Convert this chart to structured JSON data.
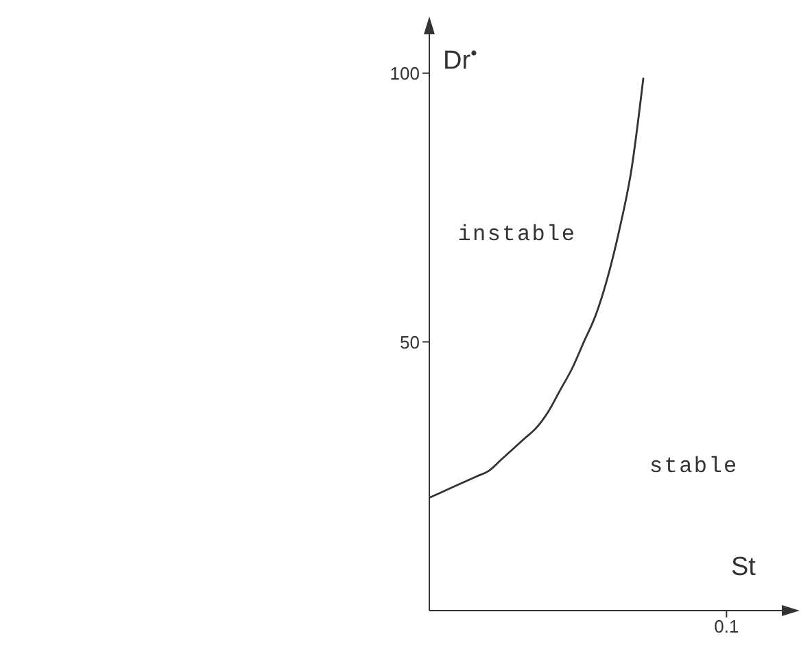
{
  "chart_data": {
    "type": "line",
    "xlabel": "St",
    "ylabel": "Dr$^{•}$",
    "categories": [
      null,
      null,
      null,
      null,
      null,
      null,
      null,
      null,
      null,
      null,
      null,
      null,
      null,
      null,
      null,
      null,
      null,
      null,
      null,
      null,
      null,
      null,
      null,
      null,
      null,
      "0.1",
      null,
      null,
      null,
      null,
      null
    ],
    "values": [
      21,
      22,
      23,
      24,
      25,
      26,
      28,
      30,
      32,
      34,
      37,
      41,
      45,
      50,
      55,
      62,
      71,
      82,
      99,
      null,
      null,
      null,
      null,
      null,
      null,
      null,
      null,
      null,
      null,
      null,
      null
    ],
    "color": "#333333",
    "marker": "none",
    "line_style": "solid",
    "ylim": [
      0,
      108
    ],
    "yticks": [
      50,
      100
    ],
    "annotations": [
      "instable",
      "stable"
    ]
  }
}
